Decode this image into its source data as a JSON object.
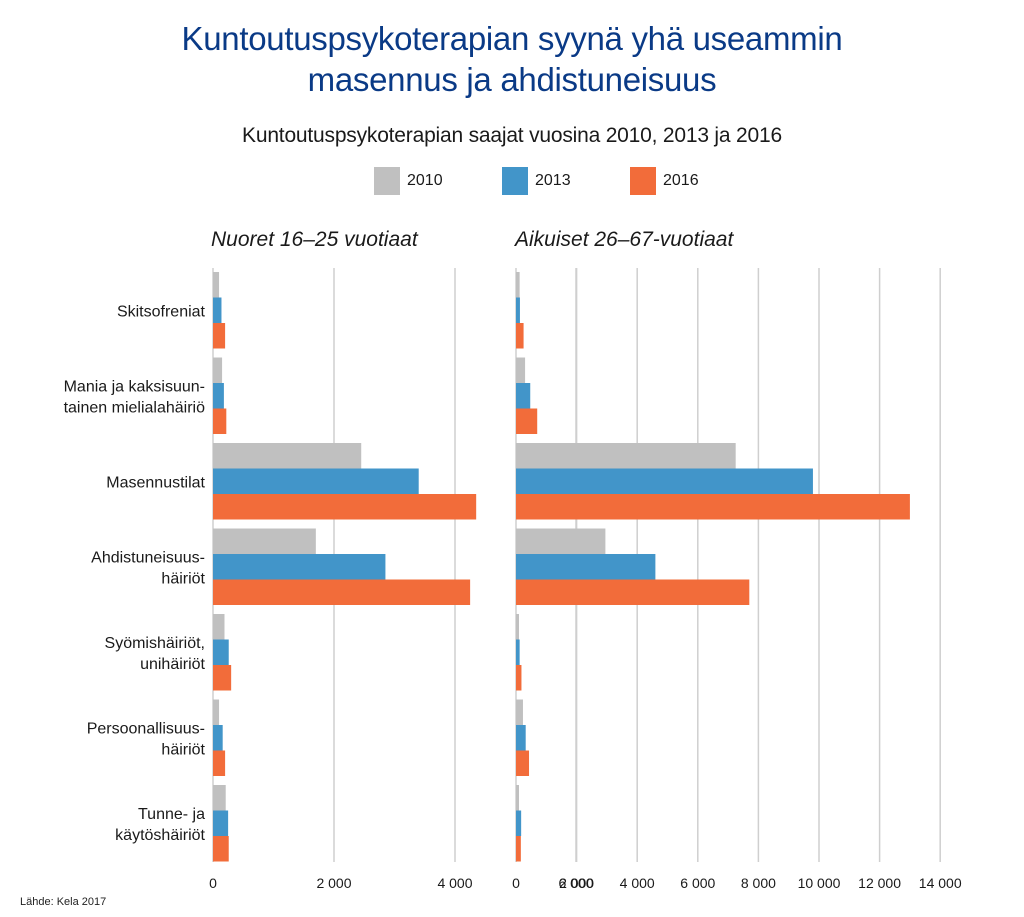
{
  "title_line1": "Kuntoutuspsykoterapian syynä yhä useammin",
  "title_line2": "masennus ja ahdistuneisuus",
  "subtitle": "Kuntoutuspsykoterapian saajat vuosina 2010, 2013 ja 2016",
  "source": "Lähde: Kela 2017",
  "colors": {
    "2010": "#c0c0c0",
    "2013": "#4295c9",
    "2016": "#f26c3a",
    "grid": "#cfcfcf"
  },
  "chart_data": [
    {
      "type": "bar",
      "orientation": "horizontal",
      "title": "Nuoret 16–25 vuotiaat",
      "legend_placement": "top-center",
      "grid": true,
      "categories": [
        [
          "Skitsofreniat"
        ],
        [
          "Mania ja kaksisuun-",
          "tainen mielialahäiriö"
        ],
        [
          "Masennustilat"
        ],
        [
          "Ahdistuneisuus-",
          "häiriöt"
        ],
        [
          "Syömishäiriöt,",
          "unihäiriöt"
        ],
        [
          "Persoonallisuus-",
          "häiriöt"
        ],
        [
          "Tunne- ja",
          "käytöshäiriöt"
        ]
      ],
      "series": [
        {
          "name": "2010",
          "values": [
            100,
            150,
            2450,
            1700,
            190,
            100,
            210
          ]
        },
        {
          "name": "2013",
          "values": [
            140,
            180,
            3400,
            2850,
            260,
            160,
            250
          ]
        },
        {
          "name": "2016",
          "values": [
            200,
            220,
            4350,
            4250,
            300,
            200,
            260
          ]
        }
      ],
      "xlim": [
        0,
        6000
      ],
      "xticks": [
        0,
        2000,
        4000,
        6000
      ],
      "xtick_labels": [
        "0",
        "2 000",
        "4 000",
        "6 000"
      ]
    },
    {
      "type": "bar",
      "orientation": "horizontal",
      "title": "Aikuiset 26–67-vuotiaat",
      "grid": true,
      "series": [
        {
          "name": "2010",
          "values": [
            120,
            300,
            7250,
            2950,
            90,
            230,
            90
          ]
        },
        {
          "name": "2013",
          "values": [
            130,
            470,
            9800,
            4600,
            120,
            320,
            170
          ]
        },
        {
          "name": "2016",
          "values": [
            250,
            700,
            13000,
            7700,
            180,
            430,
            160
          ]
        }
      ],
      "xlim": [
        0,
        14000
      ],
      "xticks": [
        0,
        2000,
        4000,
        6000,
        8000,
        10000,
        12000,
        14000
      ],
      "xtick_labels": [
        "0",
        "2 000",
        "4 000",
        "6 000",
        "8 000",
        "10 000",
        "12 000",
        "14 000"
      ]
    }
  ]
}
